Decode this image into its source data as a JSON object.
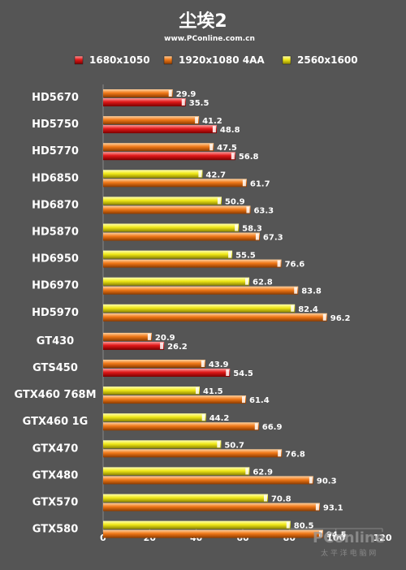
{
  "chart_data": {
    "type": "bar",
    "orientation": "horizontal",
    "title": "尘埃2",
    "subtitle": "www.PConline.com.cn",
    "xlim": [
      0,
      120
    ],
    "xticks": [
      0,
      20,
      40,
      60,
      80,
      100,
      120
    ],
    "legend_position": "top",
    "series": [
      {
        "name": "1680x1050",
        "color": "#e01818"
      },
      {
        "name": "1920x1080 4AA",
        "color": "#f07818"
      },
      {
        "name": "2560x1600",
        "color": "#f0e818"
      }
    ],
    "groups": [
      {
        "label": "HD5670",
        "bars": [
          {
            "series": 1,
            "value": 29.9
          },
          {
            "series": 0,
            "value": 35.5
          }
        ]
      },
      {
        "label": "HD5750",
        "bars": [
          {
            "series": 1,
            "value": 41.2
          },
          {
            "series": 0,
            "value": 48.8
          }
        ]
      },
      {
        "label": "HD5770",
        "bars": [
          {
            "series": 1,
            "value": 47.5
          },
          {
            "series": 0,
            "value": 56.8
          }
        ]
      },
      {
        "label": "HD6850",
        "bars": [
          {
            "series": 2,
            "value": 42.7
          },
          {
            "series": 1,
            "value": 61.7
          }
        ]
      },
      {
        "label": "HD6870",
        "bars": [
          {
            "series": 2,
            "value": 50.9
          },
          {
            "series": 1,
            "value": 63.3
          }
        ]
      },
      {
        "label": "HD5870",
        "bars": [
          {
            "series": 2,
            "value": 58.3
          },
          {
            "series": 1,
            "value": 67.3
          }
        ]
      },
      {
        "label": "HD6950",
        "bars": [
          {
            "series": 2,
            "value": 55.5
          },
          {
            "series": 1,
            "value": 76.6
          }
        ]
      },
      {
        "label": "HD6970",
        "bars": [
          {
            "series": 2,
            "value": 62.8
          },
          {
            "series": 1,
            "value": 83.8
          }
        ]
      },
      {
        "label": "HD5970",
        "bars": [
          {
            "series": 2,
            "value": 82.4
          },
          {
            "series": 1,
            "value": 96.2
          }
        ]
      },
      {
        "label": "GT430",
        "bars": [
          {
            "series": 1,
            "value": 20.9
          },
          {
            "series": 0,
            "value": 26.2
          }
        ]
      },
      {
        "label": "GTS450",
        "bars": [
          {
            "series": 1,
            "value": 43.9
          },
          {
            "series": 0,
            "value": 54.5
          }
        ]
      },
      {
        "label": "GTX460 768M",
        "bars": [
          {
            "series": 2,
            "value": 41.5
          },
          {
            "series": 1,
            "value": 61.4
          }
        ]
      },
      {
        "label": "GTX460 1G",
        "bars": [
          {
            "series": 2,
            "value": 44.2
          },
          {
            "series": 1,
            "value": 66.9
          }
        ]
      },
      {
        "label": "GTX470",
        "bars": [
          {
            "series": 2,
            "value": 50.7
          },
          {
            "series": 1,
            "value": 76.8
          }
        ]
      },
      {
        "label": "GTX480",
        "bars": [
          {
            "series": 2,
            "value": 62.9
          },
          {
            "series": 1,
            "value": 90.3
          }
        ]
      },
      {
        "label": "GTX570",
        "bars": [
          {
            "series": 2,
            "value": 70.8
          },
          {
            "series": 1,
            "value": 93.1
          }
        ]
      },
      {
        "label": "GTX580",
        "bars": [
          {
            "series": 2,
            "value": 80.5
          },
          {
            "series": 1,
            "value": 94.5
          }
        ]
      }
    ]
  },
  "watermark": {
    "brand": "PConline",
    "tagline": "太 平 洋 电 脑 网"
  }
}
